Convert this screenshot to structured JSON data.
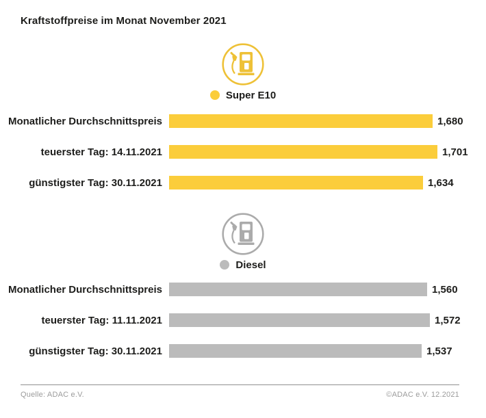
{
  "title": "Kraftstoffpreise im Monat November 2021",
  "footer": {
    "source": "Quelle: ADAC e.V.",
    "copyright": "©ADAC e.V. 12.2021"
  },
  "colors": {
    "super_e10_bar": "#FBCD3B",
    "super_e10_icon": "#EEC137",
    "diesel_bar": "#BBBBBB",
    "diesel_icon": "#ABABAB",
    "text": "#1D1D1B",
    "footer_text": "#9B9B9B"
  },
  "chart_data": [
    {
      "type": "bar",
      "orientation": "horizontal",
      "series_name": "Super E10",
      "icon": "fuel-pump-icon",
      "bar_color": "#FBCD3B",
      "icon_color": "#EEC137",
      "categories": [
        "Monatlicher Durchschnittspreis",
        "teuerster Tag: 14.11.2021",
        "günstigster Tag: 30.11.2021"
      ],
      "values": [
        1.68,
        1.701,
        1.634
      ],
      "value_labels": [
        "1,680",
        "1,701",
        "1,634"
      ],
      "xlim": [
        0.45,
        1.701
      ],
      "grid": false,
      "legend_position": "top-center"
    },
    {
      "type": "bar",
      "orientation": "horizontal",
      "series_name": "Diesel",
      "icon": "fuel-pump-icon",
      "bar_color": "#BBBBBB",
      "icon_color": "#ABABAB",
      "categories": [
        "Monatlicher Durchschnittspreis",
        "teuerster Tag: 11.11.2021",
        "günstigster Tag: 30.11.2021"
      ],
      "values": [
        1.56,
        1.572,
        1.537
      ],
      "value_labels": [
        "1,560",
        "1,572",
        "1,537"
      ],
      "xlim": [
        0.44,
        1.605
      ],
      "grid": false,
      "legend_position": "top-center"
    }
  ]
}
